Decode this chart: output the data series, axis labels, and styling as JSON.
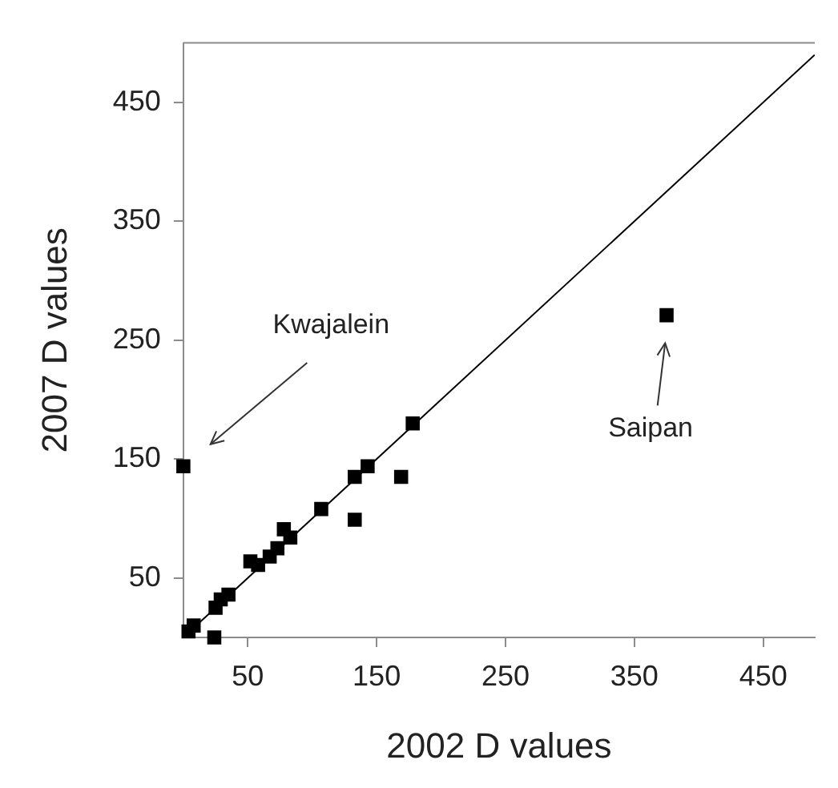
{
  "chart_data": {
    "type": "scatter",
    "xlabel": "2002 D values",
    "ylabel": "2007 D values",
    "xlim": [
      0,
      490
    ],
    "ylim": [
      0,
      500
    ],
    "xticks": [
      50,
      150,
      250,
      350,
      450
    ],
    "yticks": [
      50,
      150,
      250,
      350,
      450
    ],
    "grid": false,
    "legend": false,
    "series": [
      {
        "color": "#000000",
        "marker": "square",
        "x": [
          0,
          375,
          178,
          143,
          133,
          169,
          133,
          107,
          78,
          83,
          73,
          67,
          58,
          52,
          35,
          29,
          25,
          8,
          4,
          24
        ],
        "values": [
          144,
          271,
          180,
          144,
          135,
          135,
          99,
          108,
          91,
          84,
          75,
          68,
          61,
          64,
          36,
          32,
          25,
          10,
          5,
          0
        ]
      },
      {
        "type": "line",
        "color": "#000000",
        "x": [
          0,
          490
        ],
        "values": [
          0,
          490
        ]
      }
    ],
    "annotations": [
      "Kwajalein",
      "Saipan"
    ]
  }
}
